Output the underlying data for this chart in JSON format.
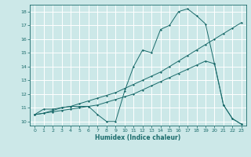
{
  "xlabel": "Humidex (Indice chaleur)",
  "background_color": "#cce8e8",
  "grid_color": "#ffffff",
  "line_color": "#1a6b6b",
  "xlim": [
    -0.5,
    23.5
  ],
  "ylim": [
    9.7,
    18.5
  ],
  "xticks": [
    0,
    1,
    2,
    3,
    4,
    5,
    6,
    7,
    8,
    9,
    10,
    11,
    12,
    13,
    14,
    15,
    16,
    17,
    18,
    19,
    20,
    21,
    22,
    23
  ],
  "yticks": [
    10,
    11,
    12,
    13,
    14,
    15,
    16,
    17,
    18
  ],
  "line1_x": [
    0,
    1,
    2,
    3,
    4,
    5,
    6,
    7,
    8,
    9,
    10,
    11,
    12,
    13,
    14,
    15,
    16,
    17,
    18,
    19,
    20,
    21,
    22,
    23
  ],
  "line1_y": [
    10.5,
    10.9,
    10.9,
    11.0,
    11.1,
    11.1,
    11.1,
    10.5,
    10.0,
    10.0,
    12.2,
    14.0,
    15.2,
    15.0,
    16.7,
    17.0,
    18.0,
    18.2,
    17.7,
    17.1,
    14.2,
    11.2,
    10.2,
    9.8
  ],
  "line2_x": [
    0,
    1,
    2,
    3,
    4,
    5,
    6,
    7,
    8,
    9,
    10,
    11,
    12,
    13,
    14,
    15,
    16,
    17,
    18,
    19,
    20,
    21,
    22,
    23
  ],
  "line2_y": [
    10.5,
    10.6,
    10.7,
    10.8,
    10.9,
    11.0,
    11.1,
    11.2,
    11.4,
    11.6,
    11.8,
    12.0,
    12.3,
    12.6,
    12.9,
    13.2,
    13.5,
    13.8,
    14.1,
    14.4,
    14.2,
    11.2,
    10.2,
    9.8
  ],
  "line3_x": [
    0,
    1,
    2,
    3,
    4,
    5,
    6,
    7,
    8,
    9,
    10,
    11,
    12,
    13,
    14,
    15,
    16,
    17,
    18,
    19,
    20,
    21,
    22,
    23
  ],
  "line3_y": [
    10.5,
    10.6,
    10.8,
    11.0,
    11.1,
    11.3,
    11.5,
    11.7,
    11.9,
    12.1,
    12.4,
    12.7,
    13.0,
    13.3,
    13.6,
    14.0,
    14.4,
    14.8,
    15.2,
    15.6,
    16.0,
    16.4,
    16.8,
    17.2
  ]
}
